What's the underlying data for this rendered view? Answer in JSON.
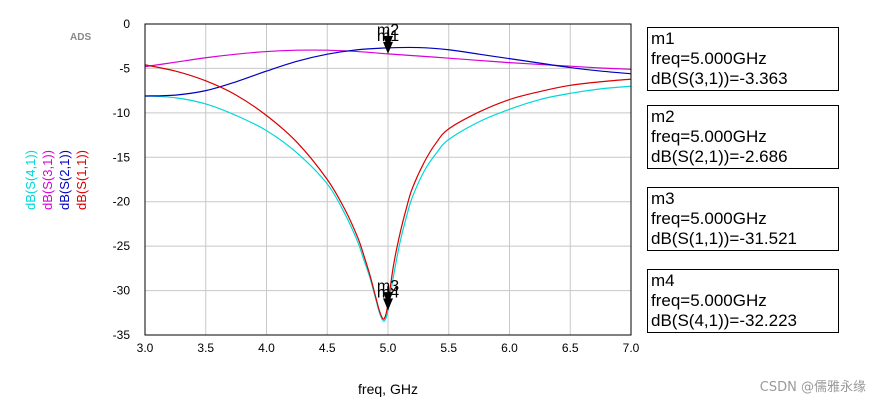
{
  "watermark": "CSDN @儒雅永缘",
  "ads_label": "ADS",
  "chart_data": {
    "type": "line",
    "xlabel": "freq, GHz",
    "xlim": [
      3.0,
      7.0
    ],
    "ylim": [
      -35,
      0
    ],
    "x_ticks": [
      "3.0",
      "3.5",
      "4.0",
      "4.5",
      "5.0",
      "5.5",
      "6.0",
      "6.5",
      "7.0"
    ],
    "y_ticks": [
      "0",
      "-5",
      "-10",
      "-15",
      "-20",
      "-25",
      "-30",
      "-35"
    ],
    "grid": true,
    "series": [
      {
        "name": "dB(S(4,1))",
        "color": "#00d8d8",
        "x": [
          3.0,
          3.25,
          3.5,
          3.75,
          4.0,
          4.25,
          4.5,
          4.65,
          4.75,
          4.8,
          4.85,
          4.9,
          4.93,
          4.96,
          4.98,
          5.0,
          5.02,
          5.05,
          5.1,
          5.15,
          5.2,
          5.3,
          5.4,
          5.5,
          5.75,
          6.0,
          6.25,
          6.5,
          6.75,
          7.0
        ],
        "y": [
          -8.1,
          -8.3,
          -9.0,
          -10.3,
          -12.0,
          -14.5,
          -18.0,
          -21.5,
          -24.5,
          -26.5,
          -28.5,
          -31.0,
          -32.5,
          -33.4,
          -33.2,
          -32.223,
          -30.5,
          -28.0,
          -24.5,
          -21.8,
          -19.5,
          -16.5,
          -14.5,
          -13.0,
          -11.0,
          -9.6,
          -8.5,
          -7.8,
          -7.3,
          -7.0
        ]
      },
      {
        "name": "dB(S(3,1))",
        "color": "#d800d8",
        "x": [
          3.0,
          3.25,
          3.5,
          3.75,
          4.0,
          4.25,
          4.5,
          4.75,
          5.0,
          5.25,
          5.5,
          5.75,
          6.0,
          6.25,
          6.5,
          6.75,
          7.0
        ],
        "y": [
          -4.8,
          -4.3,
          -3.8,
          -3.4,
          -3.1,
          -2.95,
          -2.95,
          -3.1,
          -3.363,
          -3.6,
          -3.85,
          -4.1,
          -4.35,
          -4.55,
          -4.75,
          -4.95,
          -5.1
        ]
      },
      {
        "name": "dB(S(2,1))",
        "color": "#0000c0",
        "x": [
          3.0,
          3.25,
          3.5,
          3.75,
          4.0,
          4.25,
          4.5,
          4.75,
          5.0,
          5.25,
          5.5,
          5.75,
          6.0,
          6.25,
          6.5,
          6.75,
          7.0
        ],
        "y": [
          -8.1,
          -8.0,
          -7.5,
          -6.5,
          -5.3,
          -4.2,
          -3.4,
          -2.9,
          -2.686,
          -2.65,
          -2.9,
          -3.4,
          -3.9,
          -4.4,
          -4.9,
          -5.3,
          -5.6
        ]
      },
      {
        "name": "dB(S(1,1))",
        "color": "#d80000",
        "x": [
          3.0,
          3.25,
          3.5,
          3.75,
          4.0,
          4.25,
          4.5,
          4.65,
          4.75,
          4.8,
          4.85,
          4.9,
          4.93,
          4.96,
          4.98,
          5.0,
          5.02,
          5.05,
          5.1,
          5.15,
          5.2,
          5.3,
          5.4,
          5.5,
          5.75,
          6.0,
          6.25,
          6.5,
          6.75,
          7.0
        ],
        "y": [
          -4.6,
          -5.3,
          -6.4,
          -8.0,
          -10.3,
          -13.3,
          -17.5,
          -21.0,
          -24.0,
          -26.0,
          -28.2,
          -30.8,
          -32.3,
          -33.2,
          -32.8,
          -31.521,
          -29.5,
          -26.8,
          -23.5,
          -20.8,
          -18.5,
          -15.5,
          -13.3,
          -11.8,
          -9.9,
          -8.5,
          -7.6,
          -6.9,
          -6.5,
          -6.2
        ]
      }
    ],
    "markers": [
      {
        "id": "m1",
        "freq_line": "freq=5.000GHz",
        "value_line": "dB(S(3,1))=-3.363",
        "x": 5.0,
        "y": -3.363
      },
      {
        "id": "m2",
        "freq_line": "freq=5.000GHz",
        "value_line": "dB(S(2,1))=-2.686",
        "x": 5.0,
        "y": -2.686
      },
      {
        "id": "m3",
        "freq_line": "freq=5.000GHz",
        "value_line": "dB(S(1,1))=-31.521",
        "x": 5.0,
        "y": -31.521
      },
      {
        "id": "m4",
        "freq_line": "freq=5.000GHz",
        "value_line": "dB(S(4,1))=-32.223",
        "x": 5.0,
        "y": -32.223
      }
    ]
  }
}
